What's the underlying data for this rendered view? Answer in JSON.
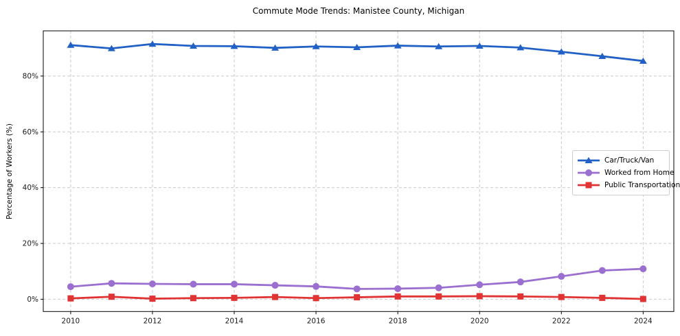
{
  "chart_data": {
    "type": "line",
    "title": "Commute Mode Trends: Manistee County, Michigan",
    "xlabel": "",
    "ylabel": "Percentage of Workers (%)",
    "x": [
      2010,
      2011,
      2012,
      2013,
      2014,
      2015,
      2016,
      2017,
      2018,
      2019,
      2020,
      2021,
      2022,
      2023,
      2024
    ],
    "series": [
      {
        "name": "Car/Truck/Van",
        "color": "#2160c4",
        "marker": "triangle",
        "values": [
          91.1,
          89.9,
          91.5,
          90.8,
          90.7,
          90.1,
          90.6,
          90.3,
          90.9,
          90.6,
          90.8,
          90.2,
          88.7,
          87.1,
          85.4
        ]
      },
      {
        "name": "Worked from Home",
        "color": "#9a6fd0",
        "marker": "circle",
        "values": [
          4.5,
          5.7,
          5.5,
          5.4,
          5.4,
          5.0,
          4.6,
          3.7,
          3.8,
          4.1,
          5.2,
          6.2,
          8.2,
          10.3,
          10.9
        ]
      },
      {
        "name": "Public Transportation",
        "color": "#e03434",
        "marker": "square",
        "values": [
          0.3,
          0.9,
          0.2,
          0.4,
          0.5,
          0.8,
          0.4,
          0.7,
          1.0,
          1.0,
          1.1,
          1.0,
          0.8,
          0.5,
          0.1
        ]
      }
    ],
    "x_ticks": [
      2010,
      2012,
      2014,
      2016,
      2018,
      2020,
      2022,
      2024
    ],
    "x_tick_labels": [
      "2010",
      "2012",
      "2014",
      "2016",
      "2018",
      "2020",
      "2022",
      "2024"
    ],
    "y_ticks": [
      0,
      20,
      40,
      60,
      80
    ],
    "y_tick_labels": [
      "0%",
      "20%",
      "40%",
      "60%",
      "80%"
    ],
    "xlim": [
      2009.33,
      2024.75
    ],
    "ylim": [
      -4.4,
      96.2
    ],
    "grid": true,
    "legend_position": "center right"
  },
  "style": {
    "grid_color": "#c9c9c9",
    "axis_color": "#000000",
    "text_color": "#1a1a1a",
    "background": "#ffffff"
  }
}
